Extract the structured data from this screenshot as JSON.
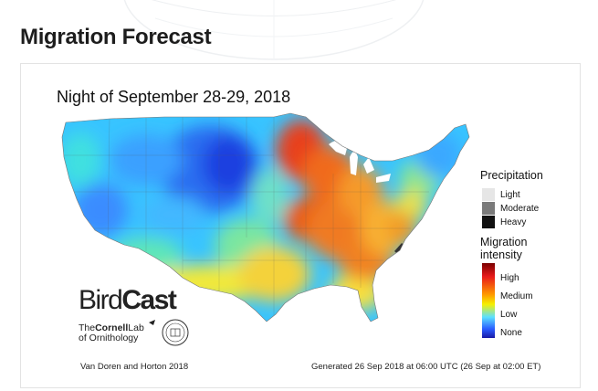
{
  "page": {
    "title": "Migration Forecast"
  },
  "map": {
    "title": "Night of September 28-29, 2018",
    "credit": "Van Doren and Horton 2018",
    "generated": "Generated 26 Sep 2018 at 06:00 UTC (26 Sep at 02:00 ET)"
  },
  "legend": {
    "precipitation": {
      "heading": "Precipitation",
      "items": [
        {
          "label": "Light",
          "color": "#e6e6e6"
        },
        {
          "label": "Moderate",
          "color": "#7a7a7a"
        },
        {
          "label": "Heavy",
          "color": "#111111"
        }
      ]
    },
    "migration": {
      "heading_line1": "Migration",
      "heading_line2": "intensity",
      "items": [
        {
          "label": "High",
          "color": "#7a0000"
        },
        {
          "label": "Medium",
          "color": "#ff8c00"
        },
        {
          "label": "Low",
          "color": "#5ce0ff"
        },
        {
          "label": "None",
          "color": "#1a1aa6"
        }
      ]
    }
  },
  "logos": {
    "birdcast_bird": "Bird",
    "birdcast_cast": "Cast",
    "cornell_the": "The",
    "cornell_name": "Cornell",
    "cornell_lab": "Lab",
    "cornell_line2": "of Ornithology"
  }
}
